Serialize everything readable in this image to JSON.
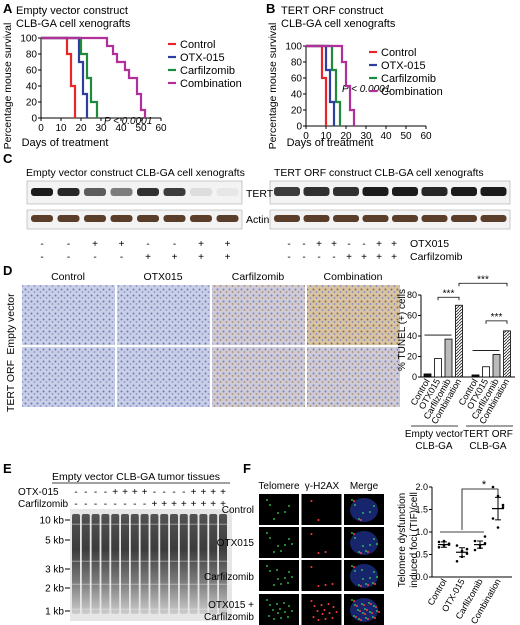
{
  "panelA": {
    "letter": "A",
    "title_line1": "Empty vector construct",
    "title_line2": "CLB-GA cell xenografts",
    "ylabel": "Percentage mouse survival",
    "xlabel": "Days of treatment",
    "pvalue": "P < 0.0001",
    "legend": [
      "Control",
      "OTX-015",
      "Carfilzomib",
      "Combination"
    ],
    "xticks": [
      "0",
      "10",
      "20",
      "30",
      "40",
      "50",
      "60"
    ],
    "yticks": [
      "0",
      "20",
      "40",
      "60",
      "80",
      "100"
    ]
  },
  "panelB": {
    "letter": "B",
    "title_line1": "TERT ORF construct",
    "title_line2": "CLB-GA cell xenografts",
    "ylabel": "Percentage mouse survival",
    "xlabel": "Days of treatment",
    "pvalue": "P < 0.0001",
    "legend": [
      "Control",
      "OTX-015",
      "Carfilzomib",
      "Combination"
    ],
    "xticks": [
      "0",
      "10",
      "20",
      "30",
      "40",
      "50",
      "60"
    ],
    "yticks": [
      "0",
      "20",
      "40",
      "60",
      "80",
      "100"
    ]
  },
  "panelC": {
    "letter": "C",
    "title_left": "Empty vector construct CLB-GA cell xenografts",
    "title_right": "TERT ORF construct CLB-GA cell xenografts",
    "band_tert": "TERT",
    "band_actin": "Actin",
    "row1_label": "OTX015",
    "row2_label": "Carfilzomib",
    "row1_signs": [
      "-",
      "-",
      "+",
      "+",
      "-",
      "-",
      "+",
      "+",
      "-",
      "-",
      "+",
      "+",
      "-",
      "-",
      "+",
      "+"
    ],
    "row2_signs": [
      "-",
      "-",
      "-",
      "-",
      "+",
      "+",
      "+",
      "+",
      "-",
      "-",
      "-",
      "-",
      "+",
      "+",
      "+",
      "+"
    ]
  },
  "panelD": {
    "letter": "D",
    "columns": [
      "Control",
      "OTX015",
      "Carfilzomib",
      "Combination"
    ],
    "rows": [
      "Empty vector",
      "TERT ORF"
    ],
    "ylabel": "% TUNEL (+) cells",
    "yticks": [
      "0",
      "20",
      "40",
      "60",
      "80"
    ],
    "bar_categories": [
      "Control",
      "OTX015",
      "Carfilzomib",
      "Combination",
      "Control",
      "OTX015",
      "Carfilzomib",
      "Combination"
    ],
    "group1": "Empty vector",
    "group1b": "CLB-GA",
    "group2": "TERT ORF",
    "group2b": "CLB-GA",
    "sig": "***"
  },
  "panelE": {
    "letter": "E",
    "title": "Empty vector CLB-GA tumor tissues",
    "row1_label": "OTX-015",
    "row2_label": "Carfilzomib",
    "row1_signs": [
      "-",
      "-",
      "-",
      "-",
      "+",
      "+",
      "+",
      "+",
      "-",
      "-",
      "-",
      "-",
      "+",
      "+",
      "+",
      "+"
    ],
    "row2_signs": [
      "-",
      "-",
      "-",
      "-",
      "-",
      "-",
      "-",
      "-",
      "+",
      "+",
      "+",
      "+",
      "+",
      "+",
      "+",
      "+"
    ],
    "markers": [
      "10 kb",
      "5 kb",
      "3 kb",
      "2 kb",
      "1 kb"
    ]
  },
  "panelF": {
    "letter": "F",
    "col_headers": [
      "Telomere",
      "γ-H2AX",
      "Merge"
    ],
    "row_labels": [
      "Control",
      "OTX015",
      "Carfilzomib",
      "OTX015 +",
      "Carfilzomib"
    ],
    "ylabel_line1": "Telomere dysfunction",
    "ylabel_line2": "induced foci (TIF)/cell",
    "yticks": [
      "0.0",
      "0.5",
      "1.0",
      "1.5",
      "2.0"
    ],
    "categories": [
      "Control",
      "OTX-015",
      "Carfilzomib",
      "Combination"
    ],
    "sig": "*"
  },
  "chart_data": [
    {
      "type": "line",
      "panel": "A",
      "title": "Empty vector construct CLB-GA cell xenografts",
      "xlabel": "Days of treatment",
      "ylabel": "Percentage mouse survival",
      "xlim": [
        0,
        60
      ],
      "ylim": [
        0,
        100
      ],
      "series": [
        {
          "name": "Control",
          "color": "#e8252a",
          "x": [
            0,
            13,
            13,
            15,
            15,
            17,
            17
          ],
          "y": [
            100,
            100,
            80,
            80,
            40,
            40,
            0
          ]
        },
        {
          "name": "OTX-015",
          "color": "#2c3e9f",
          "x": [
            0,
            19,
            19,
            21,
            21,
            23,
            23
          ],
          "y": [
            100,
            100,
            70,
            70,
            30,
            30,
            0
          ]
        },
        {
          "name": "Carfilzomib",
          "color": "#1e8a3c",
          "x": [
            0,
            20,
            20,
            23,
            23,
            25,
            25,
            28,
            28
          ],
          "y": [
            100,
            100,
            80,
            80,
            50,
            50,
            20,
            20,
            0
          ]
        },
        {
          "name": "Combination",
          "color": "#b12f9a",
          "x": [
            0,
            33,
            33,
            36,
            36,
            38,
            38,
            42,
            42,
            44,
            44,
            48,
            48,
            50,
            50,
            52,
            52
          ],
          "y": [
            100,
            100,
            90,
            90,
            80,
            80,
            70,
            70,
            60,
            60,
            50,
            50,
            30,
            30,
            10,
            10,
            0
          ]
        }
      ]
    },
    {
      "type": "line",
      "panel": "B",
      "title": "TERT ORF construct CLB-GA cell xenografts",
      "xlabel": "Days of treatment",
      "ylabel": "Percentage mouse survival",
      "xlim": [
        0,
        60
      ],
      "ylim": [
        0,
        100
      ],
      "series": [
        {
          "name": "Control",
          "color": "#e8252a",
          "x": [
            0,
            8,
            8,
            10,
            10
          ],
          "y": [
            100,
            100,
            60,
            60,
            0
          ]
        },
        {
          "name": "OTX-015",
          "color": "#2c3e9f",
          "x": [
            0,
            10,
            10,
            12,
            12,
            14,
            14
          ],
          "y": [
            100,
            100,
            70,
            70,
            30,
            30,
            0
          ]
        },
        {
          "name": "Carfilzomib",
          "color": "#1e8a3c",
          "x": [
            0,
            13,
            13,
            15,
            15,
            17,
            17
          ],
          "y": [
            100,
            100,
            70,
            70,
            30,
            30,
            0
          ]
        },
        {
          "name": "Combination",
          "color": "#b12f9a",
          "x": [
            0,
            18,
            18,
            20,
            20,
            22,
            22,
            24,
            24
          ],
          "y": [
            100,
            100,
            80,
            80,
            50,
            50,
            20,
            20,
            0
          ]
        }
      ]
    },
    {
      "type": "bar",
      "panel": "D",
      "ylabel": "% TUNEL (+) cells",
      "ylim": [
        0,
        80
      ],
      "categories": [
        "Control",
        "OTX015",
        "Carfilzomib",
        "Combination",
        "Control",
        "OTX015",
        "Carfilzomib",
        "Combination"
      ],
      "values": [
        3,
        18,
        37,
        70,
        2,
        10,
        22,
        45
      ]
    },
    {
      "type": "scatter",
      "panel": "F",
      "ylabel": "Telomere dysfunction induced foci (TIF)/cell",
      "ylim": [
        0,
        2
      ],
      "categories": [
        "Control",
        "OTX-015",
        "Carfilzomib",
        "Combination"
      ],
      "means": [
        0.72,
        0.55,
        0.72,
        1.52
      ],
      "sem": [
        0.06,
        0.1,
        0.08,
        0.25
      ],
      "points": [
        [
          0.78,
          0.7,
          0.74,
          0.66,
          0.8,
          0.72
        ],
        [
          0.7,
          0.45,
          0.62,
          0.35,
          0.58,
          0.52
        ],
        [
          0.8,
          0.65,
          0.9,
          0.6,
          0.7,
          0.75
        ],
        [
          2.0,
          1.8,
          1.55,
          1.3,
          1.1,
          1.6
        ]
      ]
    }
  ]
}
